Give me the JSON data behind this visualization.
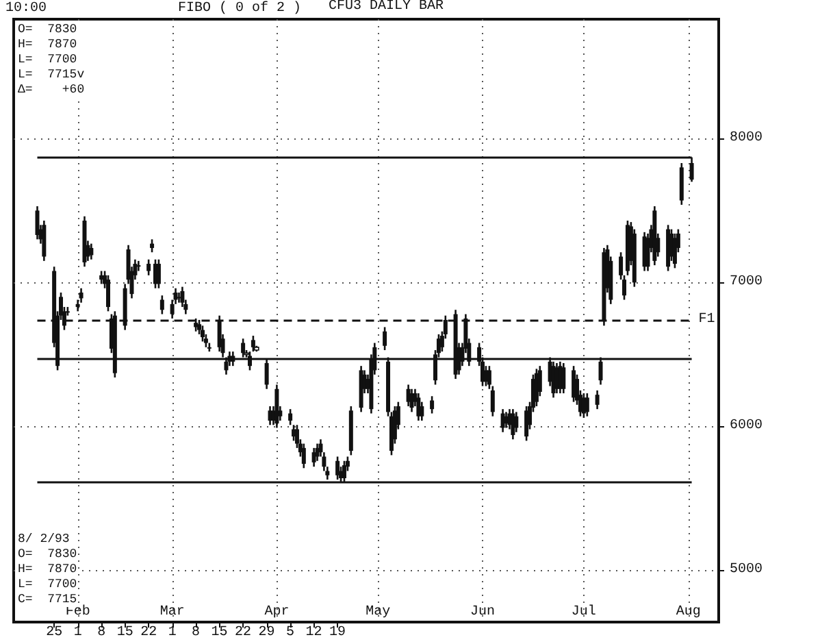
{
  "chart_data": {
    "type": "candlestick",
    "title": "CFU3 DAILY BAR",
    "annotations": [
      "10:00",
      "FIBO ( 0 of 2 )",
      "O=  7830\nH=  7870\nL=  7700\nL=  7715v\nΔ=    +60",
      "8/ 2/93\nO=  7830\nH=  7870\nL=  7700\nC=  7715"
    ],
    "x": [
      "--01-20",
      "--01-21",
      "--01-22",
      "--01-25",
      "--01-26",
      "--01-27",
      "--01-28",
      "--01-29",
      "--02-01",
      "--02-02",
      "--02-03",
      "--02-04",
      "--02-05",
      "--02-08",
      "--02-09",
      "--02-10",
      "--02-11",
      "--02-12",
      "--02-15",
      "--02-16",
      "--02-17",
      "--02-18",
      "--02-19",
      "--02-22",
      "--02-23",
      "--02-24",
      "--02-25",
      "--02-26",
      "--03-01",
      "--03-02",
      "--03-03",
      "--03-04",
      "--03-05",
      "--03-08",
      "--03-09",
      "--03-10",
      "--03-11",
      "--03-12",
      "--03-15",
      "--03-16",
      "--03-17",
      "--03-18",
      "--03-19",
      "--03-22",
      "--03-23",
      "--03-24",
      "--03-25",
      "--03-26",
      "--03-29",
      "--03-30",
      "--03-31",
      "--04-01",
      "--04-02",
      "--04-05",
      "--04-06",
      "--04-07",
      "--04-08",
      "--04-09",
      "--04-12",
      "--04-13",
      "--04-14",
      "--04-15",
      "--04-16",
      "--04-19",
      "--04-20",
      "--04-21",
      "--04-22",
      "--04-23",
      "--04-26",
      "--04-27",
      "--04-28",
      "--04-29",
      "--04-30",
      "--05-03",
      "--05-04",
      "--05-05",
      "--05-06",
      "--05-07",
      "--05-10",
      "--05-11",
      "--05-12",
      "--05-13",
      "--05-14",
      "--05-17",
      "--05-18",
      "--05-19",
      "--05-20",
      "--05-21",
      "--05-24",
      "--05-25",
      "--05-26",
      "--05-27",
      "--05-28",
      "--05-31",
      "--06-01",
      "--06-02",
      "--06-03",
      "--06-04",
      "--06-07",
      "--06-08",
      "--06-09",
      "--06-10",
      "--06-11",
      "--06-14",
      "--06-15",
      "--06-16",
      "--06-17",
      "--06-18",
      "--06-21",
      "--06-22",
      "--06-23",
      "--06-24",
      "--06-25",
      "--06-28",
      "--06-29",
      "--06-30",
      "--07-01",
      "--07-02",
      "--07-05",
      "--07-06",
      "--07-07",
      "--07-08",
      "--07-09",
      "--07-12",
      "--07-13",
      "--07-14",
      "--07-15",
      "--07-16",
      "--07-19",
      "--07-20",
      "--07-21",
      "--07-22",
      "--07-23",
      "--07-26",
      "--07-27",
      "--07-28",
      "--07-29",
      "--07-30",
      "--08-02"
    ],
    "ohlc": [
      [
        7500,
        7530,
        7300,
        7330
      ],
      [
        7370,
        7400,
        7270,
        7300
      ],
      [
        7400,
        7430,
        7150,
        7180
      ],
      [
        7080,
        7110,
        6550,
        6580
      ],
      [
        6770,
        6800,
        6390,
        6420
      ],
      [
        6900,
        6930,
        6740,
        6770
      ],
      [
        6800,
        6830,
        6670,
        6700
      ],
      [
        6800,
        6830,
        6770,
        6800
      ],
      [
        6850,
        6880,
        6800,
        6830
      ],
      [
        6930,
        6960,
        6860,
        6890
      ],
      [
        7430,
        7460,
        7110,
        7140
      ],
      [
        7260,
        7290,
        7150,
        7180
      ],
      [
        7240,
        7270,
        7160,
        7190
      ],
      [
        7050,
        7080,
        6990,
        7020
      ],
      [
        7050,
        7080,
        6960,
        6990
      ],
      [
        7020,
        7050,
        6800,
        6830
      ],
      [
        6750,
        6780,
        6510,
        6540
      ],
      [
        6770,
        6800,
        6340,
        6370
      ],
      [
        6960,
        6990,
        6670,
        6700
      ],
      [
        7230,
        7260,
        6990,
        7020
      ],
      [
        7080,
        7110,
        6890,
        6920
      ],
      [
        7130,
        7160,
        7020,
        7050
      ],
      [
        7120,
        7150,
        7080,
        7110
      ],
      [
        7130,
        7160,
        7050,
        7080
      ],
      [
        7270,
        7300,
        7210,
        7240
      ],
      [
        7130,
        7160,
        6960,
        6990
      ],
      [
        7130,
        7160,
        6960,
        6990
      ],
      [
        6880,
        6910,
        6780,
        6810
      ],
      [
        6850,
        6880,
        6750,
        6780
      ],
      [
        6930,
        6960,
        6850,
        6880
      ],
      [
        6900,
        6930,
        6860,
        6890
      ],
      [
        6940,
        6970,
        6830,
        6860
      ],
      [
        6850,
        6880,
        6780,
        6810
      ],
      [
        6720,
        6750,
        6660,
        6690
      ],
      [
        6710,
        6740,
        6640,
        6670
      ],
      [
        6670,
        6700,
        6590,
        6620
      ],
      [
        6610,
        6640,
        6550,
        6580
      ],
      [
        6550,
        6580,
        6520,
        6550
      ],
      [
        6740,
        6770,
        6520,
        6550
      ],
      [
        6610,
        6640,
        6480,
        6510
      ],
      [
        6450,
        6480,
        6360,
        6390
      ],
      [
        6490,
        6520,
        6420,
        6450
      ],
      [
        6490,
        6520,
        6420,
        6450
      ],
      [
        6580,
        6610,
        6480,
        6510
      ],
      [
        6500,
        6530,
        6480,
        6510
      ],
      [
        6490,
        6520,
        6390,
        6420
      ],
      [
        6600,
        6630,
        6520,
        6550
      ],
      [
        6530,
        6560,
        6520,
        6550
      ],
      [
        6440,
        6470,
        6260,
        6290
      ],
      [
        6110,
        6140,
        6010,
        6040
      ],
      [
        6110,
        6140,
        6010,
        6040
      ],
      [
        6260,
        6290,
        5990,
        6020
      ],
      [
        6110,
        6140,
        6040,
        6070
      ],
      [
        6090,
        6120,
        6010,
        6040
      ],
      [
        5980,
        6010,
        5900,
        5930
      ],
      [
        5980,
        6010,
        5850,
        5880
      ],
      [
        5880,
        5910,
        5790,
        5820
      ],
      [
        5850,
        5880,
        5710,
        5740
      ],
      [
        5820,
        5850,
        5720,
        5750
      ],
      [
        5850,
        5880,
        5760,
        5790
      ],
      [
        5880,
        5910,
        5790,
        5820
      ],
      [
        5790,
        5820,
        5690,
        5720
      ],
      [
        5690,
        5720,
        5630,
        5660
      ],
      [
        5760,
        5790,
        5630,
        5660
      ],
      [
        5690,
        5720,
        5610,
        5640
      ],
      [
        5730,
        5760,
        5610,
        5640
      ],
      [
        5760,
        5790,
        5690,
        5720
      ],
      [
        6110,
        6140,
        5800,
        5830
      ],
      [
        6390,
        6420,
        6100,
        6130
      ],
      [
        6360,
        6390,
        6230,
        6260
      ],
      [
        6330,
        6360,
        6230,
        6260
      ],
      [
        6470,
        6500,
        6090,
        6120
      ],
      [
        6550,
        6580,
        6360,
        6390
      ],
      [
        6660,
        6690,
        6530,
        6560
      ],
      [
        6450,
        6480,
        6070,
        6100
      ],
      [
        6070,
        6100,
        5800,
        5830
      ],
      [
        6110,
        6140,
        5880,
        5910
      ],
      [
        6140,
        6170,
        5980,
        6010
      ],
      [
        6260,
        6290,
        6140,
        6170
      ],
      [
        6230,
        6260,
        6100,
        6130
      ],
      [
        6230,
        6260,
        6140,
        6170
      ],
      [
        6200,
        6230,
        6040,
        6070
      ],
      [
        6140,
        6170,
        6040,
        6070
      ],
      [
        6180,
        6210,
        6090,
        6120
      ],
      [
        6500,
        6530,
        6290,
        6320
      ],
      [
        6610,
        6640,
        6480,
        6510
      ],
      [
        6630,
        6660,
        6520,
        6550
      ],
      [
        6740,
        6770,
        6610,
        6640
      ],
      [
        6780,
        6810,
        6330,
        6360
      ],
      [
        6550,
        6580,
        6360,
        6390
      ],
      [
        6550,
        6580,
        6420,
        6450
      ],
      [
        6750,
        6780,
        6510,
        6540
      ],
      [
        6580,
        6610,
        6420,
        6450
      ],
      [
        6550,
        6580,
        6420,
        6450
      ],
      [
        6450,
        6480,
        6280,
        6310
      ],
      [
        6390,
        6420,
        6280,
        6310
      ],
      [
        6390,
        6420,
        6260,
        6290
      ],
      [
        6250,
        6280,
        6070,
        6100
      ],
      [
        6090,
        6120,
        5960,
        5990
      ],
      [
        6070,
        6100,
        5990,
        6020
      ],
      [
        6090,
        6120,
        5980,
        6010
      ],
      [
        6090,
        6120,
        5910,
        5940
      ],
      [
        6070,
        6100,
        5960,
        5990
      ],
      [
        6110,
        6140,
        5900,
        5930
      ],
      [
        6140,
        6170,
        5980,
        6010
      ],
      [
        6330,
        6360,
        6100,
        6130
      ],
      [
        6370,
        6400,
        6140,
        6170
      ],
      [
        6390,
        6420,
        6210,
        6240
      ],
      [
        6450,
        6480,
        6280,
        6310
      ],
      [
        6420,
        6450,
        6200,
        6230
      ],
      [
        6410,
        6440,
        6230,
        6260
      ],
      [
        6420,
        6450,
        6230,
        6260
      ],
      [
        6410,
        6440,
        6230,
        6260
      ],
      [
        6390,
        6420,
        6170,
        6200
      ],
      [
        6330,
        6360,
        6150,
        6180
      ],
      [
        6220,
        6250,
        6070,
        6100
      ],
      [
        6200,
        6230,
        6060,
        6090
      ],
      [
        6200,
        6230,
        6070,
        6100
      ],
      [
        6220,
        6250,
        6120,
        6150
      ],
      [
        6450,
        6480,
        6290,
        6320
      ],
      [
        7210,
        7240,
        6700,
        6730
      ],
      [
        7230,
        7260,
        6930,
        6960
      ],
      [
        7150,
        7180,
        6850,
        6880
      ],
      [
        7180,
        7210,
        7020,
        7050
      ],
      [
        7020,
        7050,
        6880,
        6910
      ],
      [
        7400,
        7430,
        7050,
        7080
      ],
      [
        7390,
        7420,
        7120,
        7150
      ],
      [
        7340,
        7370,
        6970,
        7000
      ],
      [
        7320,
        7350,
        7080,
        7110
      ],
      [
        7310,
        7340,
        7080,
        7110
      ],
      [
        7370,
        7400,
        7210,
        7240
      ],
      [
        7500,
        7530,
        7120,
        7150
      ],
      [
        7310,
        7340,
        7180,
        7210
      ],
      [
        7370,
        7400,
        7080,
        7110
      ],
      [
        7340,
        7370,
        7150,
        7180
      ],
      [
        7310,
        7340,
        7100,
        7130
      ],
      [
        7340,
        7370,
        7210,
        7240
      ],
      [
        7800,
        7830,
        7540,
        7570
      ],
      [
        7830,
        7870,
        7700,
        7715
      ]
    ],
    "color": "#111111",
    "xlim": [
      "--01-13",
      "--08-10"
    ],
    "xticks": [
      {
        "value": "--01-25",
        "label": "25"
      },
      {
        "value": "--02-01",
        "label": "1"
      },
      {
        "value": "--02-08",
        "label": "8"
      },
      {
        "value": "--02-15",
        "label": "15"
      },
      {
        "value": "--02-22",
        "label": "22"
      },
      {
        "value": "--03-01",
        "label": "1"
      },
      {
        "value": "--03-08",
        "label": "8"
      },
      {
        "value": "--03-15",
        "label": "15"
      },
      {
        "value": "--03-22",
        "label": "22"
      },
      {
        "value": "--03-29",
        "label": "29"
      },
      {
        "value": "--04-05",
        "label": "5"
      },
      {
        "value": "--04-12",
        "label": "12"
      },
      {
        "value": "--04-19",
        "label": "19"
      }
    ],
    "x2lim": [
      "--01-13",
      "--08-10"
    ],
    "x2ticks": [
      {
        "value": "--02-01",
        "label": "Feb"
      },
      {
        "value": "--03-01",
        "label": "Mar"
      },
      {
        "value": "--04-01",
        "label": "Apr"
      },
      {
        "value": "--05-01",
        "label": "May"
      },
      {
        "value": "--06-01",
        "label": "Jun"
      },
      {
        "value": "--07-01",
        "label": "Jul"
      },
      {
        "value": "--08-01",
        "label": "Aug"
      }
    ],
    "ylim": [
      4640,
      8830
    ],
    "yticks": [
      5000,
      6000,
      7000,
      8000
    ],
    "ref_lines": [
      {
        "axis": "y",
        "value": 7870
      },
      {
        "axis": "y",
        "value": 6740,
        "label": "F1",
        "line_style": "dashed"
      },
      {
        "axis": "y",
        "value": 6470
      },
      {
        "axis": "y",
        "value": 5610
      }
    ],
    "grid": true
  }
}
